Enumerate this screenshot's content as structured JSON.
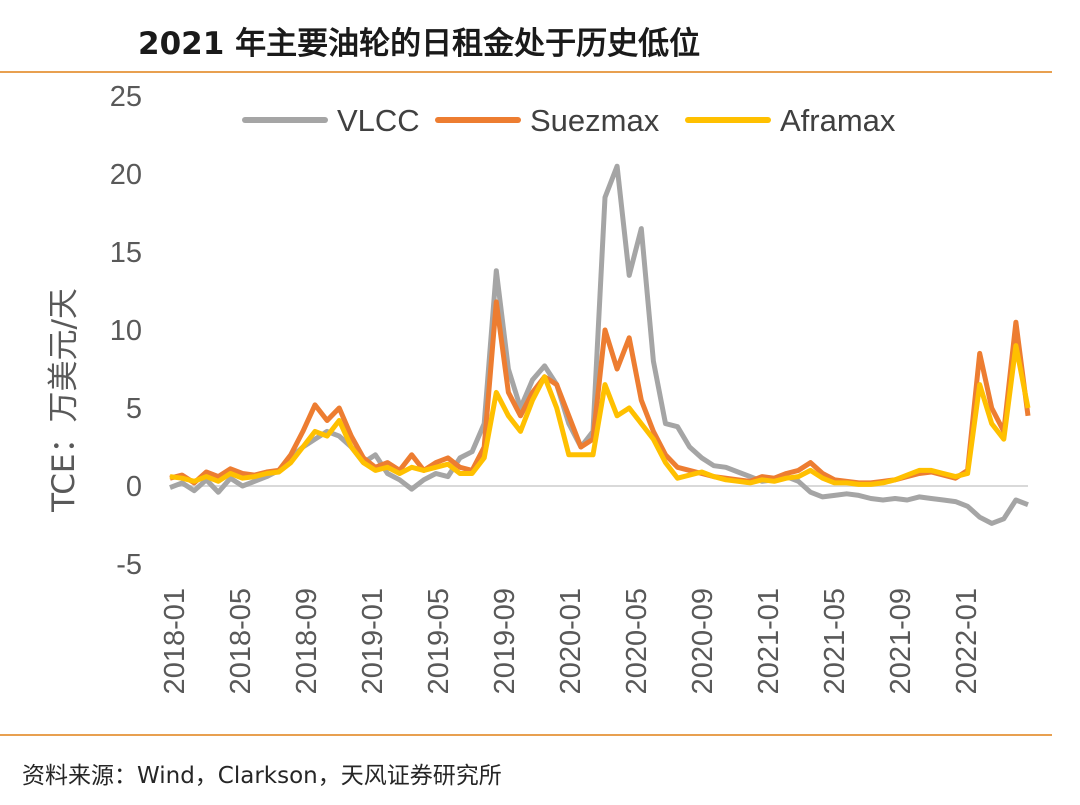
{
  "header": {
    "title": "2021 年主要油轮的日租金处于历史低位"
  },
  "footer": {
    "source": "资料来源：Wind，Clarkson，天风证券研究所"
  },
  "chart_data": {
    "type": "line",
    "title": "2021 年主要油轮的日租金处于历史低位",
    "ylabel": "TCE：万美元/天",
    "xlabel": "",
    "ylim": [
      -5,
      25
    ],
    "yticks": [
      "-5",
      "0",
      "5",
      "10",
      "15",
      "20",
      "25"
    ],
    "xticks": [
      "2018-01",
      "2018-05",
      "2018-09",
      "2019-01",
      "2019-05",
      "2019-09",
      "2020-01",
      "2020-05",
      "2020-09",
      "2021-01",
      "2021-05",
      "2021-09",
      "2022-01"
    ],
    "x_start": "2018-01",
    "x_end": "2022-04",
    "legend": "top",
    "grid": false,
    "series": [
      {
        "name": "VLCC",
        "color": "#a5a5a5",
        "points": [
          [
            0,
            -0.1
          ],
          [
            1,
            0.2
          ],
          [
            2,
            -0.3
          ],
          [
            3,
            0.4
          ],
          [
            4,
            -0.4
          ],
          [
            5,
            0.5
          ],
          [
            6,
            0.0
          ],
          [
            7,
            0.3
          ],
          [
            8,
            0.6
          ],
          [
            9,
            1.0
          ],
          [
            10,
            1.8
          ],
          [
            11,
            2.5
          ],
          [
            12,
            3.0
          ],
          [
            13,
            3.5
          ],
          [
            14,
            3.2
          ],
          [
            15,
            2.5
          ],
          [
            16,
            1.5
          ],
          [
            17,
            2.0
          ],
          [
            18,
            0.8
          ],
          [
            19,
            0.4
          ],
          [
            20,
            -0.2
          ],
          [
            21,
            0.4
          ],
          [
            22,
            0.8
          ],
          [
            23,
            0.6
          ],
          [
            24,
            1.8
          ],
          [
            25,
            2.2
          ],
          [
            26,
            4.0
          ],
          [
            27,
            13.8
          ],
          [
            28,
            7.5
          ],
          [
            29,
            5.0
          ],
          [
            30,
            6.8
          ],
          [
            31,
            7.7
          ],
          [
            32,
            6.5
          ],
          [
            33,
            4.0
          ],
          [
            34,
            2.5
          ],
          [
            35,
            3.5
          ],
          [
            36,
            18.5
          ],
          [
            37,
            20.5
          ],
          [
            38,
            13.5
          ],
          [
            39,
            16.5
          ],
          [
            40,
            8.0
          ],
          [
            41,
            4.0
          ],
          [
            42,
            3.8
          ],
          [
            43,
            2.5
          ],
          [
            44,
            1.8
          ],
          [
            45,
            1.3
          ],
          [
            46,
            1.2
          ],
          [
            47,
            0.9
          ],
          [
            48,
            0.6
          ],
          [
            49,
            0.3
          ],
          [
            50,
            0.4
          ],
          [
            51,
            0.6
          ],
          [
            52,
            0.3
          ],
          [
            53,
            -0.4
          ],
          [
            54,
            -0.7
          ],
          [
            55,
            -0.6
          ],
          [
            56,
            -0.5
          ],
          [
            57,
            -0.6
          ],
          [
            58,
            -0.8
          ],
          [
            59,
            -0.9
          ],
          [
            60,
            -0.8
          ],
          [
            61,
            -0.9
          ],
          [
            62,
            -0.7
          ],
          [
            63,
            -0.8
          ],
          [
            64,
            -0.9
          ],
          [
            65,
            -1.0
          ],
          [
            66,
            -1.3
          ],
          [
            67,
            -2.0
          ],
          [
            68,
            -2.4
          ],
          [
            69,
            -2.1
          ],
          [
            70,
            -0.9
          ],
          [
            71,
            -1.2
          ]
        ]
      },
      {
        "name": "Suezmax",
        "color": "#ed7d31",
        "points": [
          [
            0,
            0.5
          ],
          [
            1,
            0.7
          ],
          [
            2,
            0.2
          ],
          [
            3,
            0.9
          ],
          [
            4,
            0.6
          ],
          [
            5,
            1.1
          ],
          [
            6,
            0.8
          ],
          [
            7,
            0.7
          ],
          [
            8,
            0.9
          ],
          [
            9,
            1.0
          ],
          [
            10,
            2.0
          ],
          [
            11,
            3.5
          ],
          [
            12,
            5.2
          ],
          [
            13,
            4.2
          ],
          [
            14,
            5.0
          ],
          [
            15,
            3.2
          ],
          [
            16,
            1.8
          ],
          [
            17,
            1.2
          ],
          [
            18,
            1.5
          ],
          [
            19,
            1.0
          ],
          [
            20,
            2.0
          ],
          [
            21,
            1.0
          ],
          [
            22,
            1.5
          ],
          [
            23,
            1.8
          ],
          [
            24,
            1.2
          ],
          [
            25,
            1.0
          ],
          [
            26,
            2.5
          ],
          [
            27,
            11.8
          ],
          [
            28,
            6.0
          ],
          [
            29,
            4.5
          ],
          [
            30,
            6.0
          ],
          [
            31,
            7.0
          ],
          [
            32,
            6.5
          ],
          [
            33,
            4.5
          ],
          [
            34,
            2.5
          ],
          [
            35,
            3.0
          ],
          [
            36,
            10.0
          ],
          [
            37,
            7.5
          ],
          [
            38,
            9.5
          ],
          [
            39,
            5.5
          ],
          [
            40,
            3.5
          ],
          [
            41,
            2.0
          ],
          [
            42,
            1.2
          ],
          [
            43,
            1.0
          ],
          [
            44,
            0.8
          ],
          [
            45,
            0.6
          ],
          [
            46,
            0.5
          ],
          [
            47,
            0.4
          ],
          [
            48,
            0.3
          ],
          [
            49,
            0.6
          ],
          [
            50,
            0.5
          ],
          [
            51,
            0.8
          ],
          [
            52,
            1.0
          ],
          [
            53,
            1.5
          ],
          [
            54,
            0.8
          ],
          [
            55,
            0.4
          ],
          [
            56,
            0.3
          ],
          [
            57,
            0.2
          ],
          [
            58,
            0.2
          ],
          [
            59,
            0.3
          ],
          [
            60,
            0.4
          ],
          [
            61,
            0.6
          ],
          [
            62,
            0.8
          ],
          [
            63,
            0.9
          ],
          [
            64,
            0.7
          ],
          [
            65,
            0.5
          ],
          [
            66,
            1.0
          ],
          [
            67,
            8.5
          ],
          [
            68,
            5.0
          ],
          [
            69,
            3.5
          ],
          [
            70,
            10.5
          ],
          [
            71,
            4.5
          ]
        ]
      },
      {
        "name": "Aframax",
        "color": "#ffc000",
        "points": [
          [
            0,
            0.6
          ],
          [
            1,
            0.5
          ],
          [
            2,
            0.3
          ],
          [
            3,
            0.6
          ],
          [
            4,
            0.3
          ],
          [
            5,
            0.8
          ],
          [
            6,
            0.5
          ],
          [
            7,
            0.6
          ],
          [
            8,
            0.8
          ],
          [
            9,
            0.9
          ],
          [
            10,
            1.5
          ],
          [
            11,
            2.5
          ],
          [
            12,
            3.5
          ],
          [
            13,
            3.2
          ],
          [
            14,
            4.2
          ],
          [
            15,
            2.5
          ],
          [
            16,
            1.5
          ],
          [
            17,
            1.0
          ],
          [
            18,
            1.2
          ],
          [
            19,
            0.8
          ],
          [
            20,
            1.2
          ],
          [
            21,
            1.0
          ],
          [
            22,
            1.2
          ],
          [
            23,
            1.4
          ],
          [
            24,
            0.8
          ],
          [
            25,
            0.8
          ],
          [
            26,
            1.8
          ],
          [
            27,
            6.0
          ],
          [
            28,
            4.5
          ],
          [
            29,
            3.5
          ],
          [
            30,
            5.5
          ],
          [
            31,
            7.0
          ],
          [
            32,
            5.0
          ],
          [
            33,
            2.0
          ],
          [
            34,
            2.0
          ],
          [
            35,
            2.0
          ],
          [
            36,
            6.5
          ],
          [
            37,
            4.5
          ],
          [
            38,
            5.0
          ],
          [
            39,
            4.0
          ],
          [
            40,
            3.0
          ],
          [
            41,
            1.5
          ],
          [
            42,
            0.5
          ],
          [
            43,
            0.7
          ],
          [
            44,
            0.9
          ],
          [
            45,
            0.6
          ],
          [
            46,
            0.4
          ],
          [
            47,
            0.3
          ],
          [
            48,
            0.2
          ],
          [
            49,
            0.4
          ],
          [
            50,
            0.3
          ],
          [
            51,
            0.5
          ],
          [
            52,
            0.6
          ],
          [
            53,
            1.0
          ],
          [
            54,
            0.5
          ],
          [
            55,
            0.2
          ],
          [
            56,
            0.2
          ],
          [
            57,
            0.1
          ],
          [
            58,
            0.1
          ],
          [
            59,
            0.2
          ],
          [
            60,
            0.4
          ],
          [
            61,
            0.7
          ],
          [
            62,
            1.0
          ],
          [
            63,
            1.0
          ],
          [
            64,
            0.8
          ],
          [
            65,
            0.6
          ],
          [
            66,
            0.8
          ],
          [
            67,
            6.5
          ],
          [
            68,
            4.0
          ],
          [
            69,
            3.0
          ],
          [
            70,
            9.0
          ],
          [
            71,
            5.0
          ]
        ]
      }
    ]
  }
}
